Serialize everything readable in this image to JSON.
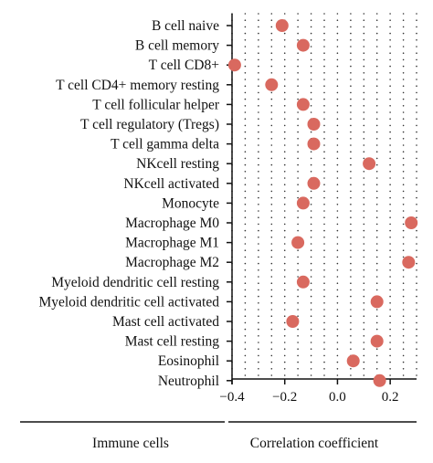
{
  "chart_data": {
    "type": "scatter",
    "categories": [
      "B cell naive",
      "B cell memory",
      "T cell CD8+",
      "T cell CD4+ memory resting",
      "T cell follicular helper",
      "T cell regulatory (Tregs)",
      "T cell gamma delta",
      "NKcell resting",
      "NKcell activated",
      "Monocyte",
      "Macrophage M0",
      "Macrophage M1",
      "Macrophage M2",
      "Myeloid dendritic cell resting",
      "Myeloid dendritic cell activated",
      "Mast cell activated",
      "Mast cell resting",
      "Eosinophil",
      "Neutrophil"
    ],
    "values": [
      -0.21,
      -0.13,
      -0.39,
      -0.25,
      -0.13,
      -0.09,
      -0.09,
      0.12,
      -0.09,
      -0.13,
      0.28,
      -0.15,
      0.27,
      -0.13,
      0.15,
      -0.17,
      0.15,
      0.06,
      0.16
    ],
    "xlim": [
      -0.4,
      0.3
    ],
    "xticks": [
      -0.4,
      -0.2,
      0.0,
      0.2
    ],
    "xtick_labels": [
      "−0.4",
      "−0.2",
      "0.0",
      "0.2"
    ],
    "left_footer": "Immune cells",
    "xlabel": "Correlation coefficient",
    "marker_color": "#d9695f",
    "grid": "dotted"
  }
}
